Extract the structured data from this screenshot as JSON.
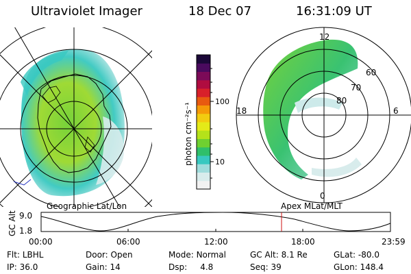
{
  "header": {
    "instrument": "Ultraviolet Imager",
    "date": "18 Dec 07",
    "time": "16:31:09 UT"
  },
  "colorbar": {
    "unit_label": "photon cm⁻²s⁻¹",
    "ticks": [
      "100",
      "10"
    ],
    "colors": [
      "#f2f2f2",
      "#d8ecec",
      "#9fdcdc",
      "#38c8c0",
      "#2fbf6a",
      "#6fd030",
      "#b5e21a",
      "#e4ea18",
      "#f2cc10",
      "#f59a08",
      "#e85a10",
      "#d8202a",
      "#b00c40",
      "#7c0a58",
      "#4a0a5e",
      "#1b0838"
    ]
  },
  "geo_map": {
    "label": "Geographic Lat/Lon"
  },
  "polar_map": {
    "label": "Apex MLat/MLT",
    "lat_labels": [
      "60",
      "70",
      "80"
    ],
    "mlt_labels": [
      "12",
      "18",
      "6",
      "0"
    ]
  },
  "altitude_plot": {
    "ylabel": "GC Alt",
    "yticks": [
      "9.0",
      "1.8"
    ],
    "xticks": [
      "00:00",
      "06:00",
      "12:00",
      "18:00",
      "23:59"
    ],
    "marker_time": "16:31",
    "marker_color": "#cc1010"
  },
  "status": {
    "row1": [
      {
        "key": "Flt:",
        "value": "LBHL"
      },
      {
        "key": "Door:",
        "value": "Open"
      },
      {
        "key": "Mode:",
        "value": "Normal"
      },
      {
        "key": "GC Alt:",
        "value": "8.1 Re"
      },
      {
        "key": "GLat:",
        "value": "-80.0"
      }
    ],
    "row2": [
      {
        "key": "IP:",
        "value": "36.0"
      },
      {
        "key": "Gain:",
        "value": "14"
      },
      {
        "key": "Dsp:",
        "value": "4.8"
      },
      {
        "key": "Seq:",
        "value": "39"
      },
      {
        "key": "GLon:",
        "value": "148.4"
      }
    ]
  }
}
